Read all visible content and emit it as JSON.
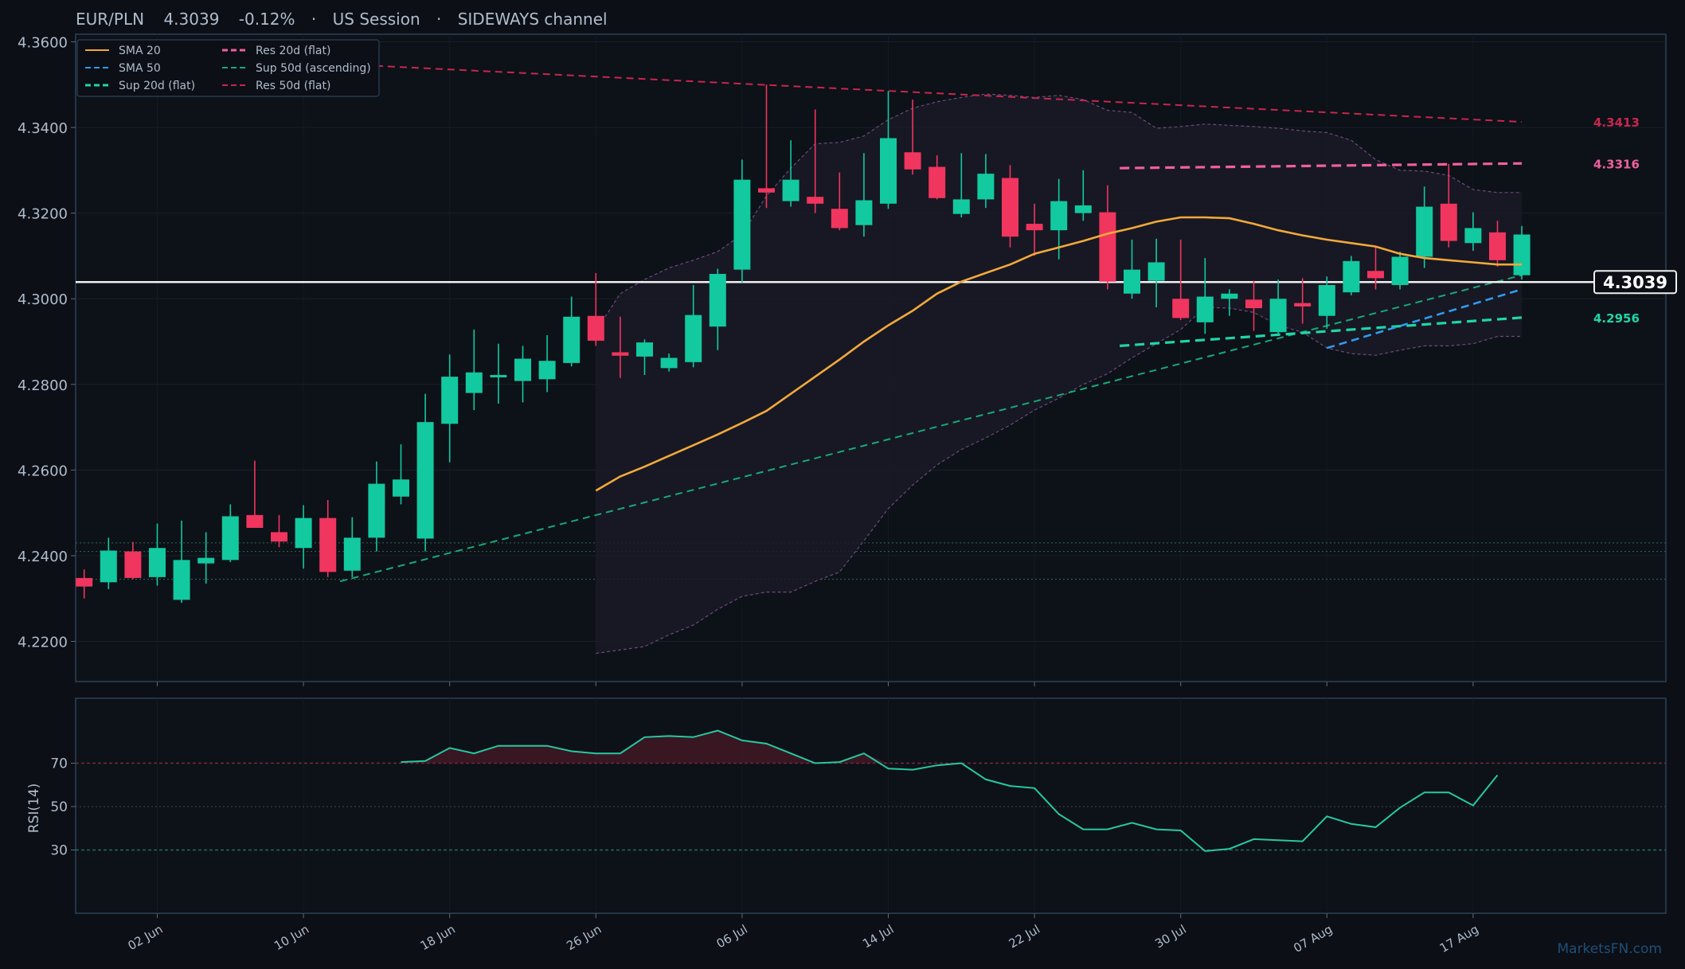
{
  "header": {
    "symbol": "EUR/PLN",
    "price": "4.3039",
    "change": "-0.12%",
    "session": "US Session",
    "channel": "SIDEWAYS channel",
    "separator": "·"
  },
  "watermark": "MarketsFN.com",
  "colors": {
    "background": "#0c0f16",
    "panel_border": "#2b4258",
    "up": "#12c9a0",
    "down": "#f0355e",
    "sma20": "#f2a93b",
    "sma50": "#2f9bf0",
    "sup_flat": "#1fd6a8",
    "sup_asc": "#18a878",
    "res_20d": "#f0609e",
    "res_50d": "#c8264e",
    "bollinger": "#6c4a7c",
    "current_price_line": "#f0f0f0",
    "rsi_line": "#26c9a0",
    "text": "#b0bccb"
  },
  "price_labels": {
    "current": "4.3039",
    "res_50d": "4.3413",
    "res_20d": "4.3316",
    "sup_20d": "4.2956"
  },
  "legend": {
    "placement": "top-left",
    "items": [
      {
        "label": "SMA 20",
        "style": "solid",
        "color_key": "sma20"
      },
      {
        "label": "Res 20d (flat)",
        "style": "dashed",
        "color_key": "res_20d"
      },
      {
        "label": "SMA 50",
        "style": "dashed",
        "color_key": "sma50"
      },
      {
        "label": "Sup 50d (ascending)",
        "style": "dashed",
        "color_key": "sup_asc"
      },
      {
        "label": "Sup 20d (flat)",
        "style": "dashed",
        "color_key": "sup_flat"
      },
      {
        "label": "Res 50d (flat)",
        "style": "dashed",
        "color_key": "res_50d"
      }
    ]
  },
  "chart_data": {
    "type": "candlestick",
    "price_ylim": [
      4.21,
      4.36
    ],
    "price_ticks": [
      "4.2200",
      "4.2400",
      "4.2600",
      "4.2800",
      "4.3000",
      "4.3200",
      "4.3400",
      "4.3600"
    ],
    "x_tick_labels": [
      {
        "label": "02 Jun",
        "index": 0
      },
      {
        "label": "10 Jun",
        "index": 6
      },
      {
        "label": "18 Jun",
        "index": 12
      },
      {
        "label": "26 Jun",
        "index": 18
      },
      {
        "label": "06 Jul",
        "index": 24
      },
      {
        "label": "14 Jul",
        "index": 30
      },
      {
        "label": "22 Jul",
        "index": 36
      },
      {
        "label": "30 Jul",
        "index": 42
      },
      {
        "label": "07 Aug",
        "index": 48
      },
      {
        "label": "17 Aug",
        "index": 54
      }
    ],
    "first_index": -3,
    "last_index": 59,
    "candles": [
      {
        "i": -3,
        "o": 4.2348,
        "h": 4.2368,
        "l": 4.23,
        "c": 4.2328
      },
      {
        "i": -2,
        "o": 4.2338,
        "h": 4.2442,
        "l": 4.2322,
        "c": 4.2412
      },
      {
        "i": -1,
        "o": 4.241,
        "h": 4.2432,
        "l": 4.2345,
        "c": 4.2348
      },
      {
        "i": 0,
        "o": 4.235,
        "h": 4.2475,
        "l": 4.233,
        "c": 4.2418
      },
      {
        "i": 1,
        "o": 4.2297,
        "h": 4.2482,
        "l": 4.229,
        "c": 4.239
      },
      {
        "i": 2,
        "o": 4.2382,
        "h": 4.2455,
        "l": 4.2335,
        "c": 4.2395
      },
      {
        "i": 3,
        "o": 4.239,
        "h": 4.252,
        "l": 4.2385,
        "c": 4.2492
      },
      {
        "i": 4,
        "o": 4.2495,
        "h": 4.2622,
        "l": 4.2465,
        "c": 4.2465
      },
      {
        "i": 5,
        "o": 4.2455,
        "h": 4.2495,
        "l": 4.242,
        "c": 4.2433
      },
      {
        "i": 6,
        "o": 4.2418,
        "h": 4.2518,
        "l": 4.237,
        "c": 4.2488
      },
      {
        "i": 7,
        "o": 4.2488,
        "h": 4.253,
        "l": 4.235,
        "c": 4.2362
      },
      {
        "i": 8,
        "o": 4.2365,
        "h": 4.249,
        "l": 4.235,
        "c": 4.2442
      },
      {
        "i": 9,
        "o": 4.2442,
        "h": 4.262,
        "l": 4.241,
        "c": 4.2568
      },
      {
        "i": 10,
        "o": 4.2538,
        "h": 4.266,
        "l": 4.252,
        "c": 4.2578
      },
      {
        "i": 11,
        "o": 4.244,
        "h": 4.2778,
        "l": 4.241,
        "c": 4.2712
      },
      {
        "i": 12,
        "o": 4.2708,
        "h": 4.287,
        "l": 4.2618,
        "c": 4.2818
      },
      {
        "i": 13,
        "o": 4.278,
        "h": 4.2928,
        "l": 4.274,
        "c": 4.2828
      },
      {
        "i": 14,
        "o": 4.2818,
        "h": 4.2895,
        "l": 4.2755,
        "c": 4.2822
      },
      {
        "i": 15,
        "o": 4.2808,
        "h": 4.289,
        "l": 4.2758,
        "c": 4.286
      },
      {
        "i": 16,
        "o": 4.2812,
        "h": 4.2915,
        "l": 4.2782,
        "c": 4.2855
      },
      {
        "i": 17,
        "o": 4.285,
        "h": 4.3005,
        "l": 4.2842,
        "c": 4.2958
      },
      {
        "i": 18,
        "o": 4.296,
        "h": 4.306,
        "l": 4.289,
        "c": 4.2902
      },
      {
        "i": 19,
        "o": 4.2875,
        "h": 4.2958,
        "l": 4.2815,
        "c": 4.2867
      },
      {
        "i": 20,
        "o": 4.2865,
        "h": 4.2905,
        "l": 4.2822,
        "c": 4.2898
      },
      {
        "i": 21,
        "o": 4.2838,
        "h": 4.2872,
        "l": 4.283,
        "c": 4.2862
      },
      {
        "i": 22,
        "o": 4.2852,
        "h": 4.3032,
        "l": 4.284,
        "c": 4.2962
      },
      {
        "i": 23,
        "o": 4.2935,
        "h": 4.307,
        "l": 4.288,
        "c": 4.3058
      },
      {
        "i": 24,
        "o": 4.3068,
        "h": 4.3325,
        "l": 4.3038,
        "c": 4.3278
      },
      {
        "i": 25,
        "o": 4.3258,
        "h": 4.35,
        "l": 4.3212,
        "c": 4.3248
      },
      {
        "i": 26,
        "o": 4.3228,
        "h": 4.337,
        "l": 4.3215,
        "c": 4.3278
      },
      {
        "i": 27,
        "o": 4.3238,
        "h": 4.3442,
        "l": 4.32,
        "c": 4.3222
      },
      {
        "i": 28,
        "o": 4.321,
        "h": 4.3295,
        "l": 4.316,
        "c": 4.3165
      },
      {
        "i": 29,
        "o": 4.3172,
        "h": 4.334,
        "l": 4.3145,
        "c": 4.323
      },
      {
        "i": 30,
        "o": 4.3222,
        "h": 4.3485,
        "l": 4.321,
        "c": 4.3375
      },
      {
        "i": 31,
        "o": 4.3342,
        "h": 4.3465,
        "l": 4.329,
        "c": 4.3302
      },
      {
        "i": 32,
        "o": 4.3308,
        "h": 4.3335,
        "l": 4.3232,
        "c": 4.3235
      },
      {
        "i": 33,
        "o": 4.3198,
        "h": 4.334,
        "l": 4.319,
        "c": 4.3232
      },
      {
        "i": 34,
        "o": 4.3232,
        "h": 4.3338,
        "l": 4.3212,
        "c": 4.3292
      },
      {
        "i": 35,
        "o": 4.3282,
        "h": 4.3312,
        "l": 4.312,
        "c": 4.3145
      },
      {
        "i": 36,
        "o": 4.3175,
        "h": 4.3222,
        "l": 4.31,
        "c": 4.316
      },
      {
        "i": 37,
        "o": 4.316,
        "h": 4.328,
        "l": 4.3092,
        "c": 4.3228
      },
      {
        "i": 38,
        "o": 4.32,
        "h": 4.33,
        "l": 4.3182,
        "c": 4.3218
      },
      {
        "i": 39,
        "o": 4.3202,
        "h": 4.3265,
        "l": 4.3022,
        "c": 4.304
      },
      {
        "i": 40,
        "o": 4.3012,
        "h": 4.3138,
        "l": 4.3,
        "c": 4.3068
      },
      {
        "i": 41,
        "o": 4.3042,
        "h": 4.314,
        "l": 4.298,
        "c": 4.3085
      },
      {
        "i": 42,
        "o": 4.3,
        "h": 4.3138,
        "l": 4.295,
        "c": 4.2955
      },
      {
        "i": 43,
        "o": 4.2945,
        "h": 4.3095,
        "l": 4.2918,
        "c": 4.3005
      },
      {
        "i": 44,
        "o": 4.3,
        "h": 4.3022,
        "l": 4.296,
        "c": 4.3012
      },
      {
        "i": 45,
        "o": 4.2998,
        "h": 4.3042,
        "l": 4.2925,
        "c": 4.2978
      },
      {
        "i": 46,
        "o": 4.2922,
        "h": 4.3045,
        "l": 4.2915,
        "c": 4.3
      },
      {
        "i": 47,
        "o": 4.299,
        "h": 4.3048,
        "l": 4.2942,
        "c": 4.2982
      },
      {
        "i": 48,
        "o": 4.296,
        "h": 4.3052,
        "l": 4.293,
        "c": 4.3032
      },
      {
        "i": 49,
        "o": 4.3015,
        "h": 4.31,
        "l": 4.3008,
        "c": 4.3088
      },
      {
        "i": 50,
        "o": 4.3065,
        "h": 4.312,
        "l": 4.3022,
        "c": 4.3048
      },
      {
        "i": 51,
        "o": 4.3032,
        "h": 4.311,
        "l": 4.3022,
        "c": 4.3098
      },
      {
        "i": 52,
        "o": 4.3098,
        "h": 4.3262,
        "l": 4.3072,
        "c": 4.3215
      },
      {
        "i": 53,
        "o": 4.3222,
        "h": 4.3315,
        "l": 4.312,
        "c": 4.3135
      },
      {
        "i": 54,
        "o": 4.313,
        "h": 4.3202,
        "l": 4.3112,
        "c": 4.3165
      },
      {
        "i": 55,
        "o": 4.3155,
        "h": 4.3182,
        "l": 4.3075,
        "c": 4.309
      },
      {
        "i": 56,
        "o": 4.3055,
        "h": 4.317,
        "l": 4.3045,
        "c": 4.315
      }
    ],
    "sma20": [
      [
        18,
        4.2552
      ],
      [
        19,
        4.2585
      ],
      [
        20,
        4.2608
      ],
      [
        21,
        4.2633
      ],
      [
        22,
        4.2658
      ],
      [
        23,
        4.2683
      ],
      [
        24,
        4.271
      ],
      [
        25,
        4.2738
      ],
      [
        26,
        4.2778
      ],
      [
        27,
        4.2818
      ],
      [
        28,
        4.2858
      ],
      [
        29,
        4.29
      ],
      [
        30,
        4.2938
      ],
      [
        31,
        4.2972
      ],
      [
        32,
        4.3012
      ],
      [
        33,
        4.304
      ],
      [
        34,
        4.306
      ],
      [
        35,
        4.308
      ],
      [
        36,
        4.3105
      ],
      [
        37,
        4.312
      ],
      [
        38,
        4.3135
      ],
      [
        39,
        4.3152
      ],
      [
        40,
        4.3165
      ],
      [
        41,
        4.318
      ],
      [
        42,
        4.319
      ],
      [
        43,
        4.319
      ],
      [
        44,
        4.3188
      ],
      [
        45,
        4.3175
      ],
      [
        46,
        4.316
      ],
      [
        47,
        4.3148
      ],
      [
        48,
        4.3138
      ],
      [
        49,
        4.313
      ],
      [
        50,
        4.3122
      ],
      [
        51,
        4.3105
      ],
      [
        52,
        4.3095
      ],
      [
        53,
        4.309
      ],
      [
        54,
        4.3085
      ],
      [
        55,
        4.308
      ],
      [
        56,
        4.308
      ]
    ],
    "sma50": [
      [
        48,
        4.2885
      ],
      [
        56,
        4.3022
      ]
    ],
    "bollinger_upper": [
      [
        18,
        4.2925
      ],
      [
        19,
        4.3012
      ],
      [
        20,
        4.3045
      ],
      [
        21,
        4.3072
      ],
      [
        22,
        4.309
      ],
      [
        23,
        4.311
      ],
      [
        24,
        4.315
      ],
      [
        25,
        4.324
      ],
      [
        26,
        4.3305
      ],
      [
        27,
        4.3362
      ],
      [
        28,
        4.3365
      ],
      [
        29,
        4.338
      ],
      [
        30,
        4.3418
      ],
      [
        31,
        4.3445
      ],
      [
        32,
        4.346
      ],
      [
        33,
        4.347
      ],
      [
        34,
        4.3478
      ],
      [
        35,
        4.3475
      ],
      [
        36,
        4.347
      ],
      [
        37,
        4.3475
      ],
      [
        38,
        4.3465
      ],
      [
        39,
        4.344
      ],
      [
        40,
        4.3435
      ],
      [
        41,
        4.3398
      ],
      [
        42,
        4.3402
      ],
      [
        43,
        4.3408
      ],
      [
        44,
        4.3405
      ],
      [
        45,
        4.3402
      ],
      [
        46,
        4.3398
      ],
      [
        47,
        4.3392
      ],
      [
        48,
        4.3388
      ],
      [
        49,
        4.337
      ],
      [
        50,
        4.3325
      ],
      [
        51,
        4.33
      ],
      [
        52,
        4.3298
      ],
      [
        53,
        4.3288
      ],
      [
        54,
        4.3255
      ],
      [
        55,
        4.3248
      ],
      [
        56,
        4.3248
      ]
    ],
    "bollinger_lower": [
      [
        18,
        4.2172
      ],
      [
        19,
        4.218
      ],
      [
        20,
        4.2188
      ],
      [
        21,
        4.2215
      ],
      [
        22,
        4.2238
      ],
      [
        23,
        4.2275
      ],
      [
        24,
        4.2305
      ],
      [
        25,
        4.2315
      ],
      [
        26,
        4.2315
      ],
      [
        27,
        4.234
      ],
      [
        28,
        4.2362
      ],
      [
        29,
        4.2435
      ],
      [
        30,
        4.251
      ],
      [
        31,
        4.2565
      ],
      [
        32,
        4.2612
      ],
      [
        33,
        4.2648
      ],
      [
        34,
        4.2675
      ],
      [
        35,
        4.2705
      ],
      [
        36,
        4.274
      ],
      [
        37,
        4.2768
      ],
      [
        38,
        4.28
      ],
      [
        39,
        4.2825
      ],
      [
        40,
        4.2862
      ],
      [
        41,
        4.2895
      ],
      [
        42,
        4.2928
      ],
      [
        43,
        4.298
      ],
      [
        44,
        4.2978
      ],
      [
        45,
        4.2968
      ],
      [
        46,
        4.2938
      ],
      [
        47,
        4.2922
      ],
      [
        48,
        4.2885
      ],
      [
        49,
        4.2872
      ],
      [
        50,
        4.2868
      ],
      [
        51,
        4.288
      ],
      [
        52,
        4.289
      ],
      [
        53,
        4.289
      ],
      [
        54,
        4.2895
      ],
      [
        55,
        4.2912
      ],
      [
        56,
        4.2912
      ]
    ],
    "res_50d": [
      [
        7.5,
        4.3548
      ],
      [
        56,
        4.3413
      ]
    ],
    "res_20d": [
      [
        39.5,
        4.3305
      ],
      [
        56,
        4.3316
      ]
    ],
    "sup_20d": [
      [
        39.5,
        4.289
      ],
      [
        56,
        4.2956
      ]
    ],
    "sup_50d": [
      [
        7.5,
        4.234
      ],
      [
        56,
        4.3055
      ]
    ],
    "current_price": 4.3039,
    "horizontal_levels": [
      4.243,
      4.241,
      4.2345
    ],
    "rsi": {
      "label": "RSI(14)",
      "ylim": [
        0,
        100
      ],
      "ticks": [
        "30",
        "50",
        "70"
      ],
      "overbought": 70,
      "oversold": 30,
      "values": [
        [
          10,
          70.5
        ],
        [
          11,
          71.0
        ],
        [
          12,
          77.0
        ],
        [
          13,
          74.5
        ],
        [
          14,
          78.0
        ],
        [
          15,
          78.0
        ],
        [
          16,
          78.0
        ],
        [
          17,
          75.5
        ],
        [
          18,
          74.5
        ],
        [
          19,
          74.5
        ],
        [
          20,
          82.0
        ],
        [
          21,
          82.5
        ],
        [
          22,
          82.0
        ],
        [
          23,
          85.0
        ],
        [
          24,
          80.5
        ],
        [
          25,
          79.0
        ],
        [
          26,
          74.5
        ],
        [
          27,
          70.0
        ],
        [
          28,
          70.5
        ],
        [
          29,
          74.5
        ],
        [
          30,
          67.5
        ],
        [
          31,
          67.0
        ],
        [
          32,
          69.0
        ],
        [
          33,
          70.0
        ],
        [
          34,
          62.5
        ],
        [
          35,
          59.5
        ],
        [
          36,
          58.5
        ],
        [
          37,
          46.5
        ],
        [
          38,
          39.5
        ],
        [
          39,
          39.5
        ],
        [
          40,
          42.5
        ],
        [
          41,
          39.5
        ],
        [
          42,
          39.0
        ],
        [
          43,
          29.5
        ],
        [
          44,
          30.5
        ],
        [
          45,
          35.0
        ],
        [
          46,
          34.5
        ],
        [
          47,
          34.0
        ],
        [
          48,
          45.5
        ],
        [
          49,
          42.0
        ],
        [
          50,
          40.5
        ],
        [
          51,
          49.5
        ],
        [
          52,
          56.5
        ],
        [
          53,
          56.5
        ],
        [
          54,
          50.5
        ],
        [
          55,
          64.5
        ]
      ]
    }
  }
}
